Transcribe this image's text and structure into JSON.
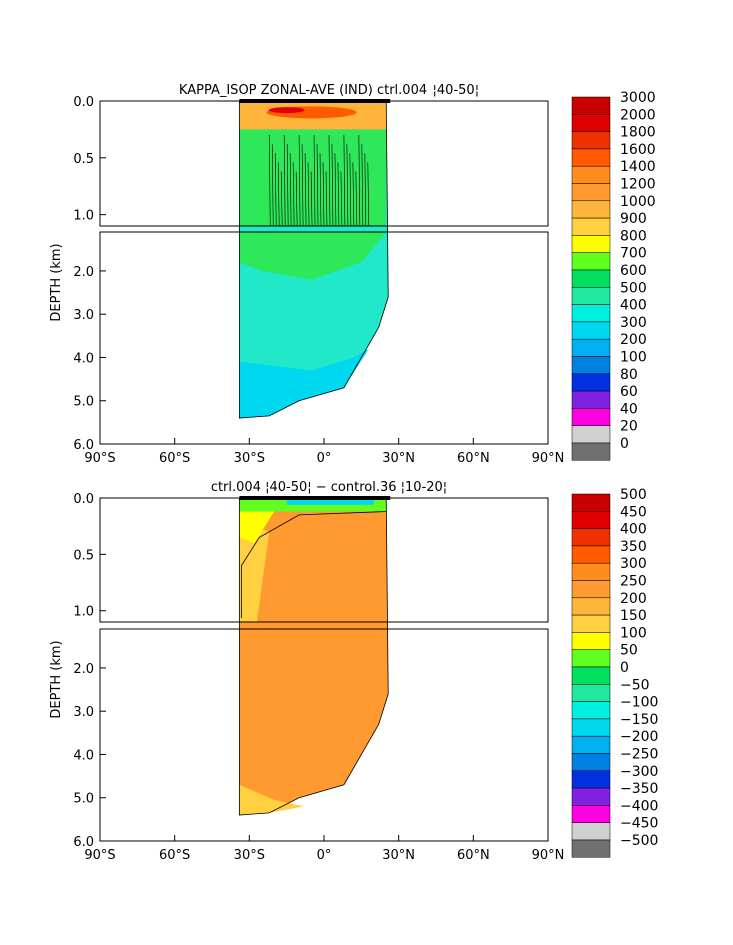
{
  "chart_data": [
    {
      "type": "heatmap",
      "title": "KAPPA_ISOP ZONAL-AVE (IND) ctrl.004  ¦40-50¦",
      "ylabel": "DEPTH (km)",
      "xticks": [
        "90°S",
        "60°S",
        "30°S",
        "0°",
        "30°N",
        "60°N",
        "90°N"
      ],
      "yticks_upper": [
        "0.0",
        "0.5",
        "1.0"
      ],
      "yticks_lower": [
        "2.0",
        "3.0",
        "4.0",
        "5.0",
        "6.0"
      ],
      "xlim": [
        -90,
        90
      ],
      "ylim_km": [
        0,
        6
      ],
      "colorbar_labels": [
        "3000",
        "2000",
        "1800",
        "1600",
        "1400",
        "1200",
        "1000",
        "900",
        "800",
        "700",
        "600",
        "500",
        "400",
        "300",
        "200",
        "100",
        "80",
        "60",
        "40",
        "20",
        "0"
      ],
      "colorbar_colors": [
        "#c80000",
        "#e00000",
        "#f03000",
        "#ff5a00",
        "#ff8c1e",
        "#ff9a30",
        "#ffb43c",
        "#ffd040",
        "#ffff00",
        "#60ff20",
        "#00e060",
        "#20e8a0",
        "#00f0e0",
        "#00d8f0",
        "#00b0f0",
        "#0080e0",
        "#0030e0",
        "#8020e0",
        "#ff00e0",
        "#d0d0d0",
        "#707070"
      ]
    },
    {
      "type": "heatmap",
      "title": "ctrl.004 ¦40-50¦ − control.36 ¦10-20¦",
      "ylabel": "DEPTH (km)",
      "xticks": [
        "90°S",
        "60°S",
        "30°S",
        "0°",
        "30°N",
        "60°N",
        "90°N"
      ],
      "yticks_upper": [
        "0.0",
        "0.5",
        "1.0"
      ],
      "yticks_lower": [
        "2.0",
        "3.0",
        "4.0",
        "5.0",
        "6.0"
      ],
      "xlim": [
        -90,
        90
      ],
      "ylim_km": [
        0,
        6
      ],
      "colorbar_labels": [
        "500",
        "450",
        "400",
        "350",
        "300",
        "250",
        "200",
        "150",
        "100",
        "50",
        "0",
        "−50",
        "−100",
        "−150",
        "−200",
        "−250",
        "−300",
        "−350",
        "−400",
        "−450",
        "−500"
      ],
      "colorbar_colors": [
        "#c80000",
        "#e00000",
        "#f03000",
        "#ff5a00",
        "#ff8c1e",
        "#ff9a30",
        "#ffb43c",
        "#ffd040",
        "#ffff00",
        "#60ff20",
        "#00e060",
        "#20e8a0",
        "#00f0e0",
        "#00d8f0",
        "#00b0f0",
        "#0080e0",
        "#0030e0",
        "#8020e0",
        "#ff00e0",
        "#d0d0d0",
        "#707070"
      ]
    }
  ]
}
